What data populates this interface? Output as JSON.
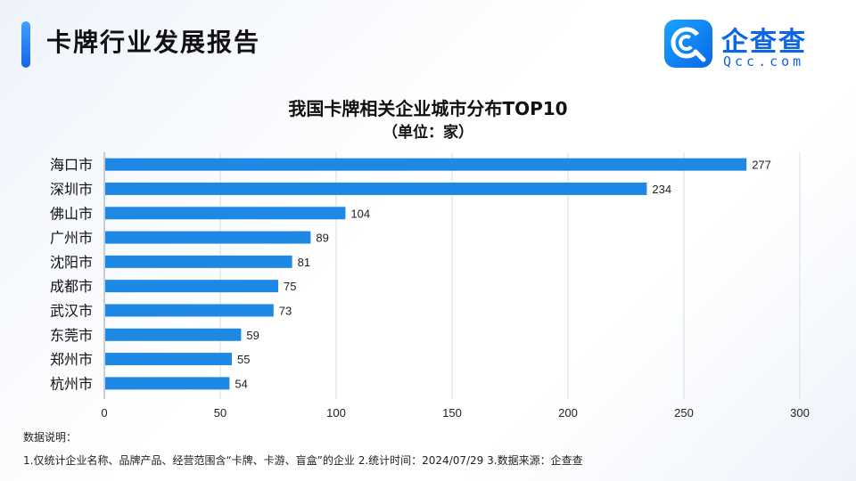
{
  "header": {
    "title": "卡牌行业发展报告"
  },
  "brand": {
    "name": "企查查",
    "domain": "Qcc.com",
    "icon": "qcc-logo-icon",
    "color": "#0b66e4"
  },
  "chart_data": {
    "type": "bar",
    "orientation": "horizontal",
    "title": "我国卡牌相关企业城市分布TOP10",
    "subtitle": "（单位：家）",
    "categories": [
      "海口市",
      "深圳市",
      "佛山市",
      "广州市",
      "沈阳市",
      "成都市",
      "武汉市",
      "东莞市",
      "郑州市",
      "杭州市"
    ],
    "values": [
      277,
      234,
      104,
      89,
      81,
      75,
      73,
      59,
      55,
      54
    ],
    "xlim": [
      0,
      300
    ],
    "xticks": [
      0,
      50,
      100,
      150,
      200,
      250,
      300
    ],
    "grid": true,
    "bar_color": "#1e88e5"
  },
  "notes": {
    "label": "数据说明：",
    "text": "1.仅统计企业名称、品牌产品、经营范围含“卡牌、卡游、盲盒”的企业   2.统计时间：2024/07/29   3.数据来源：企查查"
  }
}
